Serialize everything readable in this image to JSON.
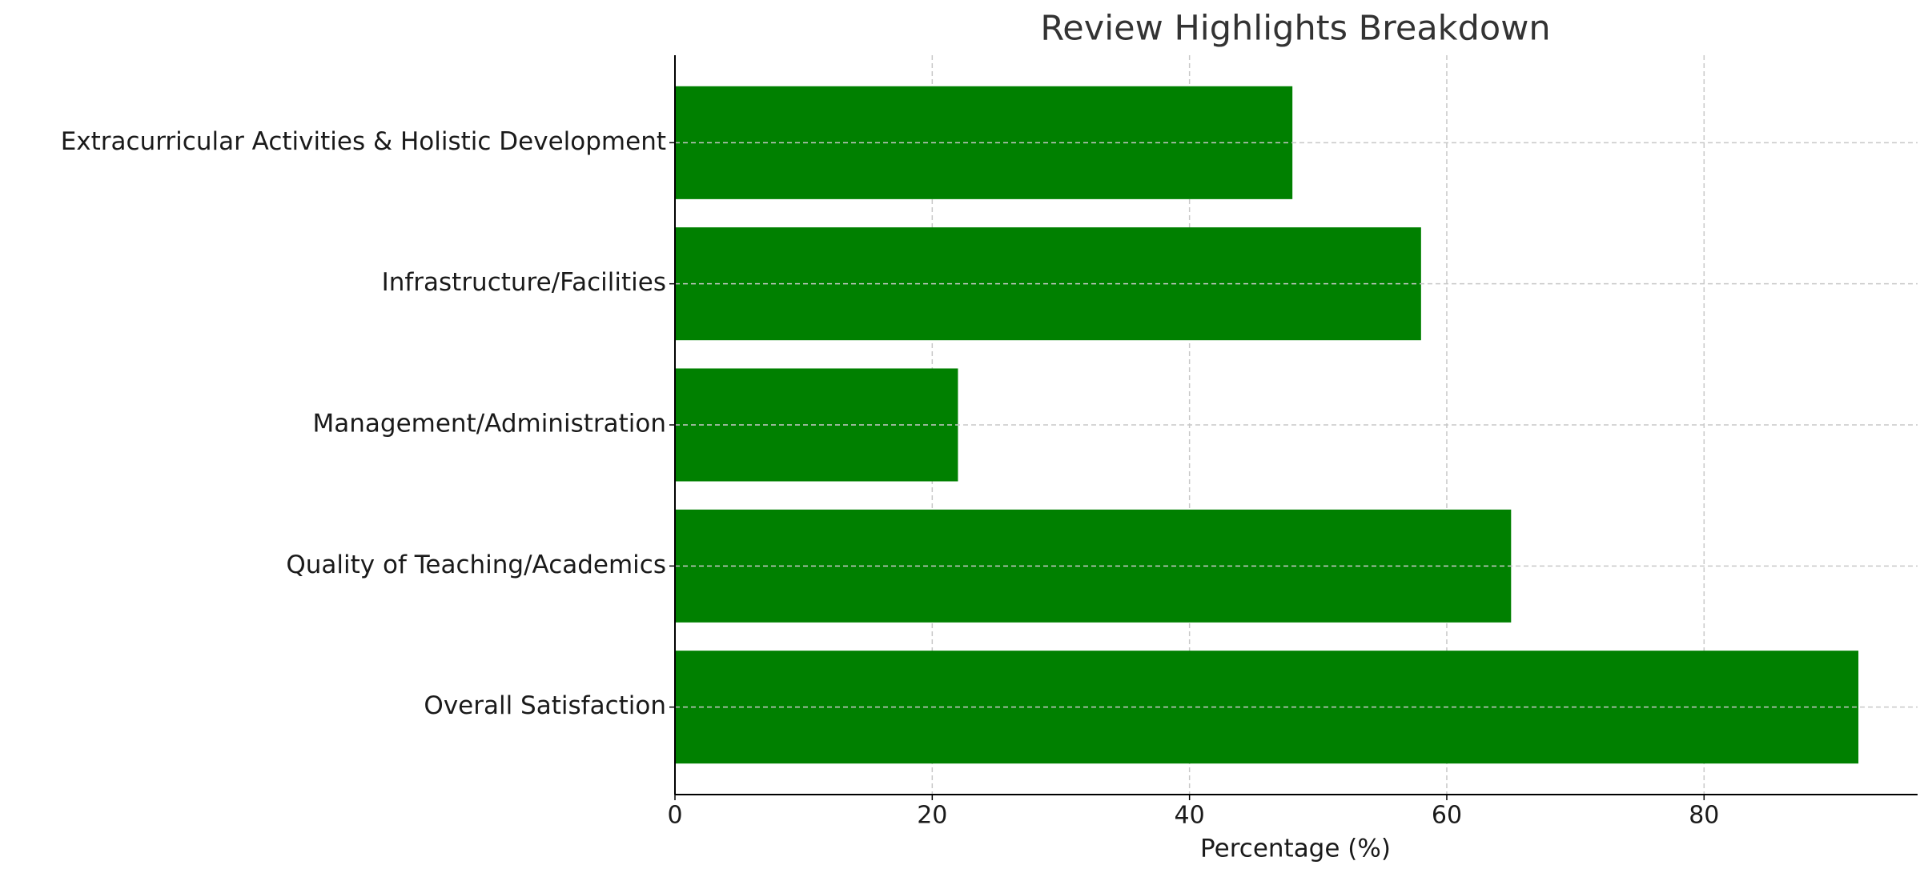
{
  "chart_data": {
    "type": "barh",
    "title": "Review Highlights Breakdown",
    "x_label": "Percentage (%)",
    "categories": [
      "Overall Satisfaction",
      "Quality of Teaching/Academics",
      "Management/Administration",
      "Infrastructure/Facilities",
      "Extracurricular Activities & Holistic Development"
    ],
    "values": [
      92,
      65,
      22,
      58,
      48
    ],
    "color": "#008000",
    "xlim": [
      0,
      96.6
    ],
    "xticks": [
      0,
      20,
      40,
      60,
      80
    ],
    "grid": true
  }
}
